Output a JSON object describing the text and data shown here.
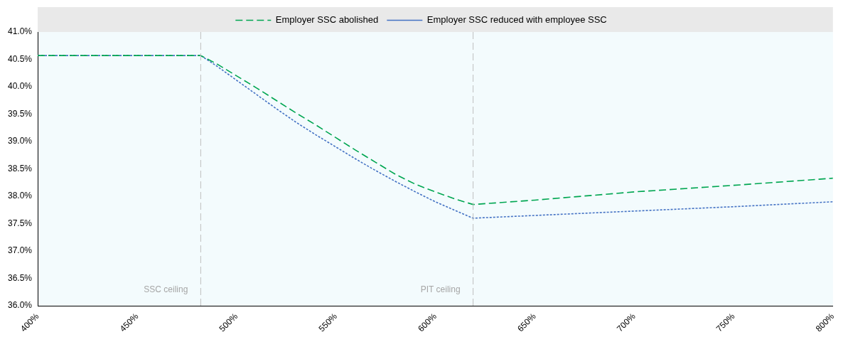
{
  "chart_data": {
    "type": "line",
    "series": [
      {
        "name": "Employer SSC abolished",
        "color": "#00a651",
        "line_style": "dashed",
        "x": [
          400,
          482,
          490,
          500,
          510,
          520,
          530,
          540,
          550,
          560,
          570,
          580,
          590,
          600,
          610,
          619,
          650,
          700,
          750,
          800
        ],
        "values": [
          40.57,
          40.57,
          40.42,
          40.2,
          39.98,
          39.75,
          39.52,
          39.3,
          39.07,
          38.84,
          38.62,
          38.4,
          38.22,
          38.08,
          37.95,
          37.85,
          37.93,
          38.08,
          38.2,
          38.33
        ]
      },
      {
        "name": "Employer SSC reduced with employee SSC",
        "color": "#4472c4",
        "line_style": "dotted",
        "x": [
          400,
          482,
          490,
          500,
          510,
          520,
          530,
          540,
          550,
          560,
          570,
          580,
          590,
          600,
          610,
          619,
          650,
          700,
          750,
          800
        ],
        "values": [
          40.57,
          40.57,
          40.38,
          40.12,
          39.86,
          39.6,
          39.35,
          39.12,
          38.9,
          38.68,
          38.47,
          38.27,
          38.08,
          37.9,
          37.74,
          37.6,
          37.65,
          37.73,
          37.81,
          37.9
        ]
      }
    ],
    "xlim": [
      400,
      800
    ],
    "xticks": [
      {
        "value": 400,
        "label": "400%"
      },
      {
        "value": 450,
        "label": "450%"
      },
      {
        "value": 500,
        "label": "500%"
      },
      {
        "value": 550,
        "label": "550%"
      },
      {
        "value": 600,
        "label": "600%"
      },
      {
        "value": 650,
        "label": "650%"
      },
      {
        "value": 700,
        "label": "700%"
      },
      {
        "value": 750,
        "label": "750%"
      },
      {
        "value": 800,
        "label": "800%"
      }
    ],
    "ylim": [
      36,
      41
    ],
    "yticks": [
      {
        "value": 36,
        "label": "36.0%"
      },
      {
        "value": 36.5,
        "label": "36.5%"
      },
      {
        "value": 37,
        "label": "37.0%"
      },
      {
        "value": 37.5,
        "label": "37.5%"
      },
      {
        "value": 38,
        "label": "38.0%"
      },
      {
        "value": 38.5,
        "label": "38.5%"
      },
      {
        "value": 39,
        "label": "39.0%"
      },
      {
        "value": 39.5,
        "label": "39.5%"
      },
      {
        "value": 40,
        "label": "40.0%"
      },
      {
        "value": 40.5,
        "label": "40.5%"
      },
      {
        "value": 41,
        "label": "41.0%"
      }
    ],
    "ref_lines": [
      {
        "axis": "x",
        "value": 482,
        "label": "SSC ceiling",
        "color": "#bfbfbf",
        "line_style": "dashed"
      },
      {
        "axis": "x",
        "value": 619,
        "label": "PIT ceiling",
        "color": "#bfbfbf",
        "line_style": "dashed"
      }
    ],
    "grid": false,
    "legend": "top",
    "marker": "none"
  }
}
